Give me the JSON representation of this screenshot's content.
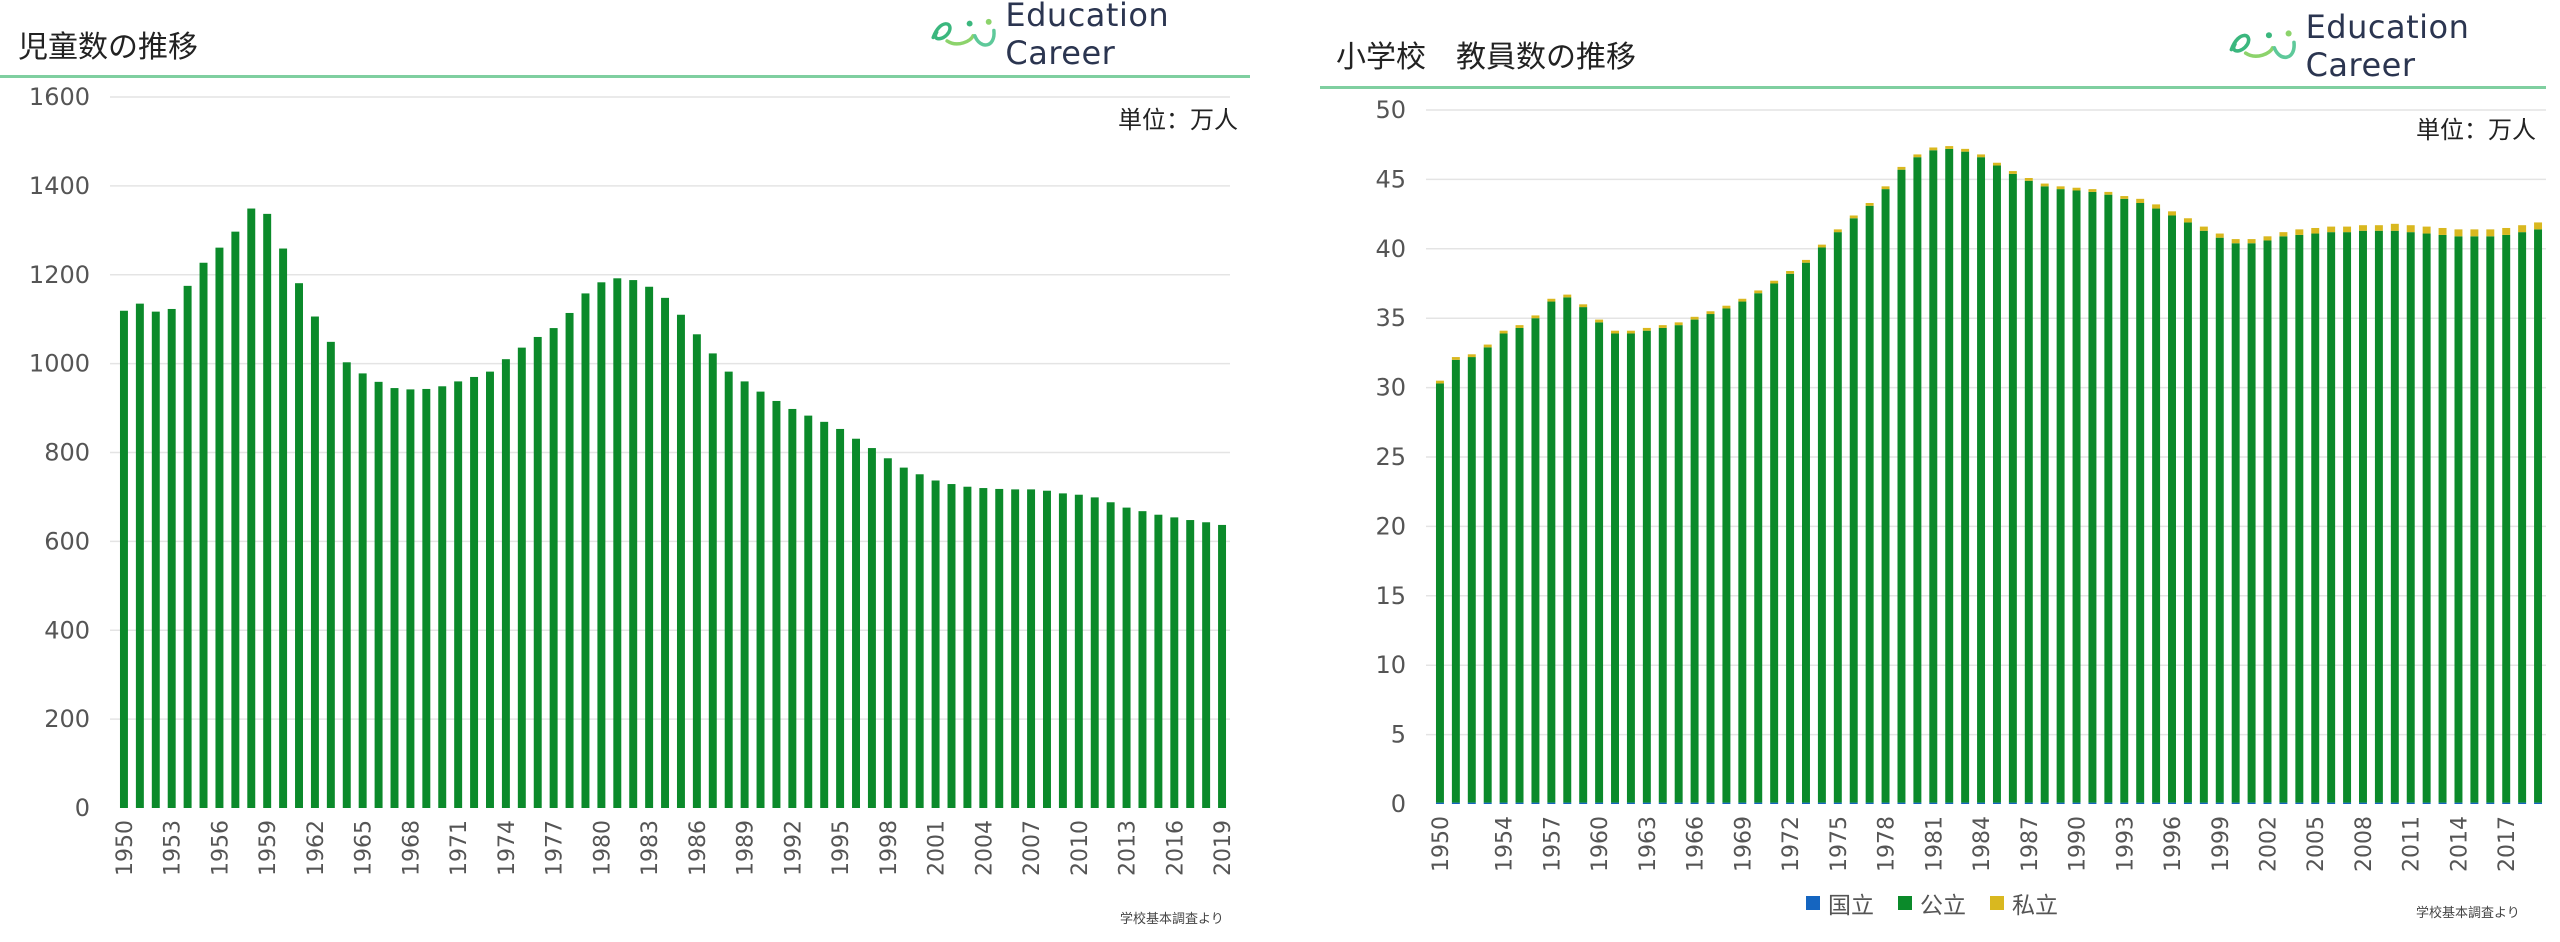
{
  "colors": {
    "public": "#0b8a2a",
    "national": "#1565c0",
    "private": "#d9b81f",
    "grid": "#e4e4e4",
    "title_line": "#7fcfa0"
  },
  "brand": {
    "name": "Education Career",
    "logo_icon": "ec-smile-logo"
  },
  "left": {
    "title": "児童数の推移",
    "unit": "単位：万人",
    "source": "学校基本調査より"
  },
  "right": {
    "title": "小学校　教員数の推移",
    "unit": "単位：万人",
    "source": "学校基本調査より",
    "legend": [
      {
        "label": "国立",
        "color_key": "national"
      },
      {
        "label": "公立",
        "color_key": "public"
      },
      {
        "label": "私立",
        "color_key": "private"
      }
    ]
  },
  "chart_data": [
    {
      "type": "bar",
      "title": "児童数の推移",
      "ylabel": "単位：万人",
      "ylim": [
        0,
        1600
      ],
      "yticks": [
        0,
        200,
        400,
        600,
        800,
        1000,
        1200,
        1400,
        1600
      ],
      "x_start": 1950,
      "x_end": 2019,
      "xtick_labels": [
        "1950",
        "1953",
        "1956",
        "1959",
        "1962",
        "1965",
        "1968",
        "1971",
        "1974",
        "1977",
        "1980",
        "1983",
        "1986",
        "1989",
        "1992",
        "1995",
        "1998",
        "2001",
        "2004",
        "2007",
        "2010",
        "2013",
        "2016",
        "2019"
      ],
      "grid": true,
      "values": [
        1119,
        1135,
        1117,
        1123,
        1175,
        1227,
        1261,
        1297,
        1349,
        1337,
        1259,
        1181,
        1106,
        1049,
        1003,
        978,
        959,
        945,
        942,
        943,
        949,
        960,
        970,
        982,
        1010,
        1036,
        1060,
        1080,
        1114,
        1158,
        1183,
        1192,
        1188,
        1173,
        1148,
        1110,
        1066,
        1023,
        982,
        960,
        937,
        916,
        898,
        883,
        869,
        853,
        831,
        810,
        787,
        766,
        751,
        737,
        729,
        723,
        720,
        718,
        717,
        717,
        714,
        708,
        705,
        699,
        688,
        676,
        668,
        660,
        654,
        648,
        643,
        637
      ]
    },
    {
      "type": "bar",
      "stacked": true,
      "title": "小学校　教員数の推移",
      "ylabel": "単位：万人",
      "ylim": [
        0,
        50
      ],
      "yticks": [
        0,
        5,
        10,
        15,
        20,
        25,
        30,
        35,
        40,
        45,
        50
      ],
      "x_start": 1950,
      "x_end": 2019,
      "xtick_labels": [
        "1950",
        "1954",
        "1957",
        "1960",
        "1963",
        "1966",
        "1969",
        "1972",
        "1975",
        "1978",
        "1981",
        "1984",
        "1987",
        "1990",
        "1993",
        "1996",
        "1999",
        "2002",
        "2005",
        "2008",
        "2011",
        "2014",
        "2017"
      ],
      "legend_position": "bottom",
      "grid": true,
      "series": [
        {
          "name": "国立",
          "color_key": "national",
          "values": [
            0.1,
            0.1,
            0.1,
            0.1,
            0.1,
            0.1,
            0.1,
            0.1,
            0.1,
            0.1,
            0.1,
            0.1,
            0.1,
            0.1,
            0.1,
            0.1,
            0.1,
            0.1,
            0.1,
            0.1,
            0.1,
            0.1,
            0.1,
            0.1,
            0.1,
            0.1,
            0.1,
            0.1,
            0.1,
            0.1,
            0.1,
            0.1,
            0.1,
            0.1,
            0.1,
            0.1,
            0.1,
            0.1,
            0.1,
            0.1,
            0.1,
            0.1,
            0.1,
            0.1,
            0.1,
            0.1,
            0.1,
            0.1,
            0.1,
            0.1,
            0.1,
            0.1,
            0.1,
            0.1,
            0.1,
            0.1,
            0.1,
            0.1,
            0.1,
            0.1,
            0.1,
            0.1,
            0.1,
            0.1,
            0.1,
            0.1,
            0.1,
            0.1,
            0.1,
            0.1
          ]
        },
        {
          "name": "公立",
          "color_key": "public",
          "values": [
            30.2,
            31.9,
            32.1,
            32.8,
            33.8,
            34.2,
            34.9,
            36.1,
            36.4,
            35.7,
            34.6,
            33.8,
            33.8,
            34.0,
            34.2,
            34.4,
            34.8,
            35.2,
            35.6,
            36.1,
            36.7,
            37.4,
            38.1,
            38.9,
            40.0,
            41.1,
            42.1,
            43.0,
            44.2,
            45.6,
            46.5,
            47.0,
            47.1,
            46.9,
            46.5,
            45.9,
            45.3,
            44.8,
            44.4,
            44.2,
            44.1,
            44.0,
            43.8,
            43.5,
            43.2,
            42.8,
            42.3,
            41.8,
            41.2,
            40.7,
            40.3,
            40.3,
            40.5,
            40.8,
            40.9,
            41.0,
            41.1,
            41.1,
            41.2,
            41.2,
            41.2,
            41.1,
            41.0,
            40.9,
            40.8,
            40.8,
            40.8,
            40.9,
            41.1,
            41.3
          ]
        },
        {
          "name": "私立",
          "color_key": "private",
          "values": [
            0.2,
            0.2,
            0.2,
            0.2,
            0.2,
            0.2,
            0.2,
            0.2,
            0.2,
            0.2,
            0.2,
            0.2,
            0.2,
            0.2,
            0.2,
            0.2,
            0.2,
            0.2,
            0.2,
            0.2,
            0.2,
            0.2,
            0.2,
            0.2,
            0.2,
            0.2,
            0.2,
            0.2,
            0.2,
            0.2,
            0.2,
            0.2,
            0.2,
            0.2,
            0.2,
            0.2,
            0.2,
            0.2,
            0.2,
            0.2,
            0.2,
            0.2,
            0.2,
            0.2,
            0.3,
            0.3,
            0.3,
            0.3,
            0.3,
            0.3,
            0.3,
            0.3,
            0.3,
            0.3,
            0.4,
            0.4,
            0.4,
            0.4,
            0.4,
            0.4,
            0.5,
            0.5,
            0.5,
            0.5,
            0.5,
            0.5,
            0.5,
            0.5,
            0.5,
            0.5
          ]
        }
      ]
    }
  ]
}
